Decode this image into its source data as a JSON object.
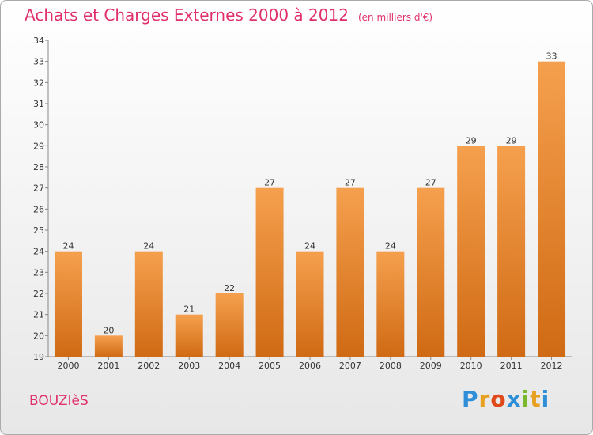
{
  "title": "Achats et Charges Externes 2000 à 2012",
  "subtitle": "(en milliers d'€)",
  "commune": "BOUZIèS",
  "logo": {
    "letters": [
      "P",
      "r",
      "o",
      "x",
      "i",
      "t",
      "i"
    ],
    "colors": [
      "#2e8fd8",
      "#e8a020",
      "#e04a1a",
      "#2e8fd8",
      "#7ab82e",
      "#e8a020",
      "#2e8fd8"
    ]
  },
  "colors": {
    "bar_top": "#f5a04e",
    "bar_bottom": "#d06a14",
    "accent": "#e0306a"
  },
  "chart_data": {
    "type": "bar",
    "title": "Achats et Charges Externes 2000 à 2012",
    "subtitle": "(en milliers d'€)",
    "categories": [
      "2000",
      "2001",
      "2002",
      "2003",
      "2004",
      "2005",
      "2006",
      "2007",
      "2008",
      "2009",
      "2010",
      "2011",
      "2012"
    ],
    "values": [
      24,
      20,
      24,
      21,
      22,
      27,
      24,
      27,
      24,
      27,
      29,
      29,
      33
    ],
    "ylim": [
      19,
      34
    ],
    "yticks": [
      19,
      20,
      21,
      22,
      23,
      24,
      25,
      26,
      27,
      28,
      29,
      30,
      31,
      32,
      33,
      34
    ],
    "grid": false,
    "data_labels": true
  }
}
